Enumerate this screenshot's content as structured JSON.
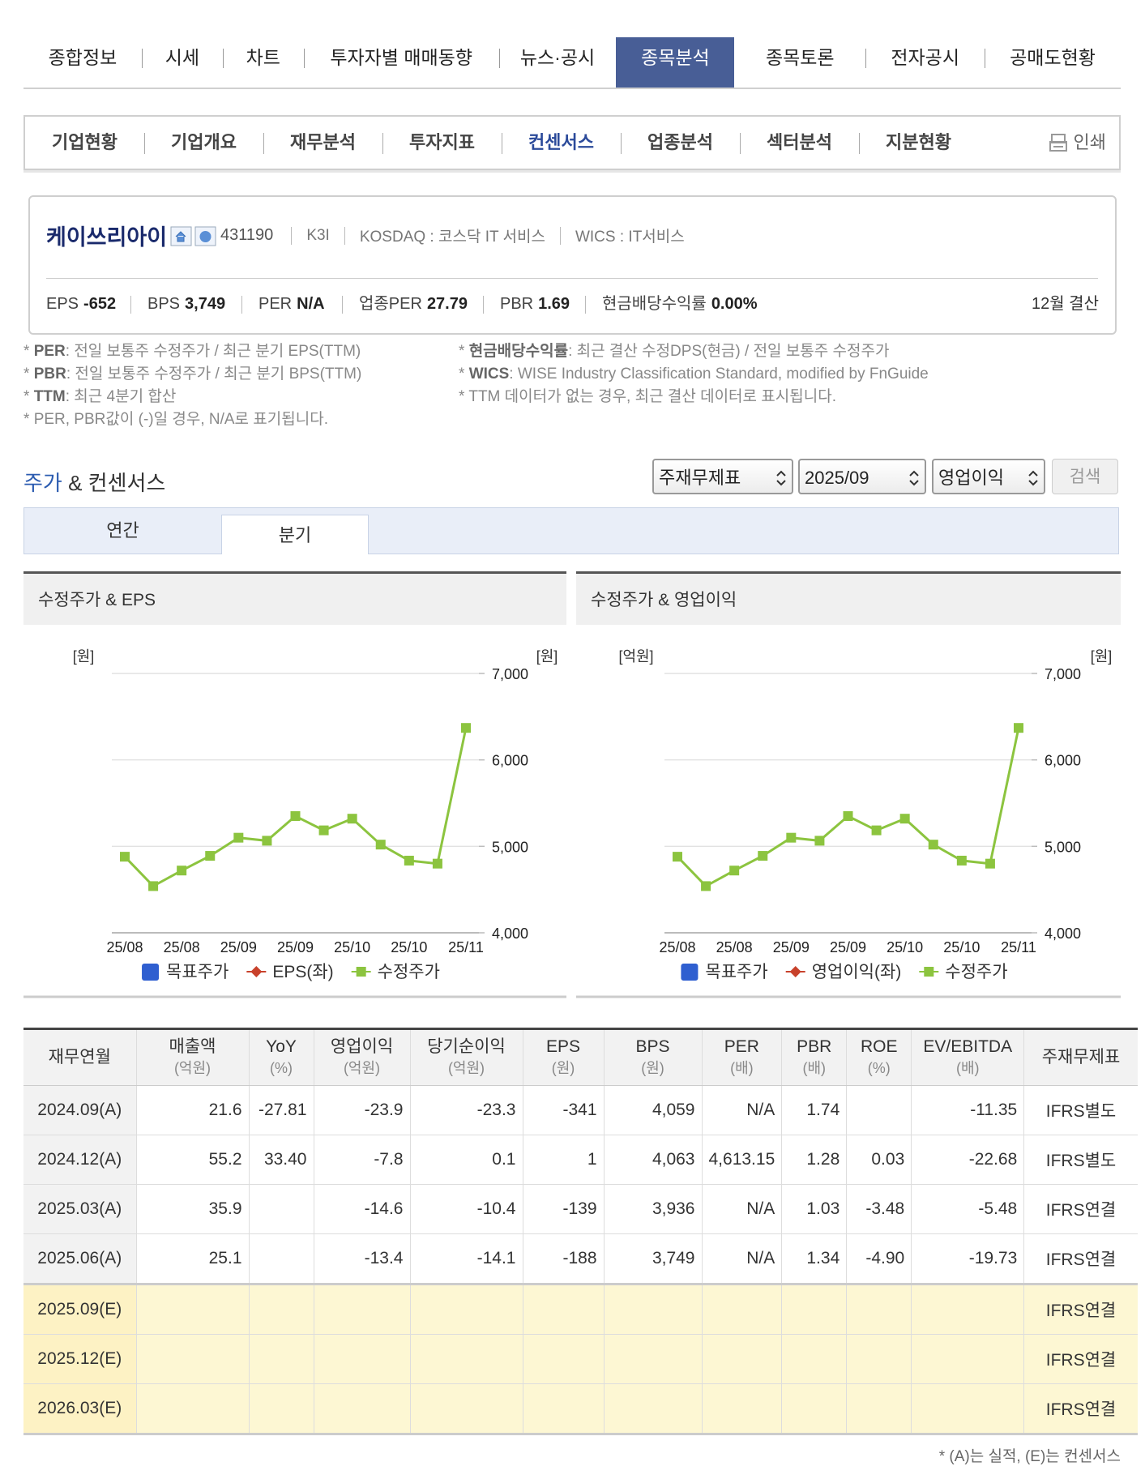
{
  "main_tabs": [
    "종합정보",
    "시세",
    "차트",
    "투자자별 매매동향",
    "뉴스·공시",
    "종목분석",
    "종목토론",
    "전자공시",
    "공매도현황"
  ],
  "main_active": 5,
  "sub_tabs": [
    "기업현황",
    "기업개요",
    "재무분석",
    "투자지표",
    "컨센서스",
    "업종분석",
    "섹터분석",
    "지분현황"
  ],
  "sub_active": 4,
  "print_label": "인쇄",
  "company": {
    "name": "케이쓰리아이",
    "code": "431190",
    "ticker": "K3I",
    "market": "KOSDAQ : 코스닥 IT 서비스",
    "wics": "WICS : IT서비스"
  },
  "metrics": [
    {
      "label": "EPS",
      "value": "-652"
    },
    {
      "label": "BPS",
      "value": "3,749"
    },
    {
      "label": "PER",
      "value": "N/A"
    },
    {
      "label": "업종PER",
      "value": "27.79"
    },
    {
      "label": "PBR",
      "value": "1.69"
    },
    {
      "label": "현금배당수익률",
      "value": "0.00%"
    }
  ],
  "fiscal": "12월 결산",
  "notes": {
    "bullet": "*",
    "left": [
      {
        "term": "PER",
        "text": ": 전일 보통주 수정주가 / 최근 분기 EPS(TTM)"
      },
      {
        "term": "PBR",
        "text": ": 전일 보통주 수정주가 / 최근 분기 BPS(TTM)"
      },
      {
        "term": "TTM",
        "text": ": 최근 4분기 합산"
      },
      {
        "text": "PER, PBR값이 (-)일 경우, N/A로 표기됩니다."
      }
    ],
    "right": [
      {
        "term": "현금배당수익률",
        "text": ": 최근 결산 수정DPS(현금) / 전일 보통주 수정주가"
      },
      {
        "term": "WICS",
        "text": ": WISE Industry Classification Standard, modified by FnGuide"
      },
      {
        "text": "TTM 데이터가 없는 경우, 최근 결산 데이터로 표시됩니다."
      }
    ]
  },
  "section": {
    "title_accent": "주가",
    "title_rest": "& 컨센서스"
  },
  "selects": [
    "주재무제표",
    "2025/09",
    "영업이익"
  ],
  "search_button": "검색",
  "period_tabs": [
    "연간",
    "분기"
  ],
  "period_active": 1,
  "chart_data": [
    {
      "type": "line",
      "title": "수정주가 & EPS",
      "y_label": "[원]",
      "y2_label": "[원]",
      "categories": [
        "25/08",
        null,
        "25/08",
        null,
        "25/09",
        null,
        "25/09",
        null,
        "25/10",
        null,
        "25/10",
        null,
        "25/11"
      ],
      "series": [
        {
          "name": "목표주가",
          "color": "#2f5fd0",
          "marker": "square",
          "values": [
            null,
            null,
            null,
            null,
            null,
            null,
            null,
            null,
            null,
            null,
            null,
            null,
            null
          ]
        },
        {
          "name": "EPS(좌)",
          "color": "#c8412b",
          "marker": "diamond",
          "values": [
            null,
            null,
            null,
            null,
            null,
            null,
            null,
            null,
            null,
            null,
            null,
            null,
            null
          ]
        },
        {
          "name": "수정주가",
          "color": "#8cc43f",
          "marker": "square",
          "axis": "y2",
          "values": [
            4880,
            4540,
            4720,
            4890,
            5100,
            5065,
            5350,
            5185,
            5320,
            5020,
            4835,
            4800,
            6370
          ]
        }
      ],
      "y2lim": [
        4000,
        7000
      ],
      "y2ticks": [
        {
          "value": 4000,
          "label": "4,000"
        },
        {
          "value": 5000,
          "label": "5,000"
        },
        {
          "value": 6000,
          "label": "6,000"
        },
        {
          "value": 7000,
          "label": "7,000"
        }
      ],
      "grid": true
    },
    {
      "type": "line",
      "title": "수정주가 & 영업이익",
      "y_label": "[억원]",
      "y2_label": "[원]",
      "categories": [
        "25/08",
        null,
        "25/08",
        null,
        "25/09",
        null,
        "25/09",
        null,
        "25/10",
        null,
        "25/10",
        null,
        "25/11"
      ],
      "series": [
        {
          "name": "목표주가",
          "color": "#2f5fd0",
          "marker": "square",
          "values": [
            null,
            null,
            null,
            null,
            null,
            null,
            null,
            null,
            null,
            null,
            null,
            null,
            null
          ]
        },
        {
          "name": "영업이익(좌)",
          "color": "#c8412b",
          "marker": "diamond",
          "values": [
            null,
            null,
            null,
            null,
            null,
            null,
            null,
            null,
            null,
            null,
            null,
            null,
            null
          ]
        },
        {
          "name": "수정주가",
          "color": "#8cc43f",
          "marker": "square",
          "axis": "y2",
          "values": [
            4880,
            4540,
            4720,
            4890,
            5100,
            5065,
            5350,
            5185,
            5320,
            5020,
            4835,
            4800,
            6370
          ]
        }
      ],
      "y2lim": [
        4000,
        7000
      ],
      "y2ticks": [
        {
          "value": 4000,
          "label": "4,000"
        },
        {
          "value": 5000,
          "label": "5,000"
        },
        {
          "value": 6000,
          "label": "6,000"
        },
        {
          "value": 7000,
          "label": "7,000"
        }
      ],
      "grid": true
    }
  ],
  "table": {
    "header": [
      {
        "label": "재무연월"
      },
      {
        "label": "매출액",
        "unit": "(억원)"
      },
      {
        "label": "YoY",
        "unit": "(%)"
      },
      {
        "label": "영업이익",
        "unit": "(억원)"
      },
      {
        "label": "당기순이익",
        "unit": "(억원)"
      },
      {
        "label": "EPS",
        "unit": "(원)"
      },
      {
        "label": "BPS",
        "unit": "(원)"
      },
      {
        "label": "PER",
        "unit": "(배)"
      },
      {
        "label": "PBR",
        "unit": "(배)"
      },
      {
        "label": "ROE",
        "unit": "(%)"
      },
      {
        "label": "EV/EBITDA",
        "unit": "(배)"
      },
      {
        "label": "주재무제표"
      }
    ],
    "rows": [
      [
        "2024.09(A)",
        "21.6",
        "-27.81",
        "-23.9",
        "-23.3",
        "-341",
        "4,059",
        "N/A",
        "1.74",
        null,
        "-11.35",
        "IFRS별도"
      ],
      [
        "2024.12(A)",
        "55.2",
        "33.40",
        "-7.8",
        "0.1",
        "1",
        "4,063",
        "4,613.15",
        "1.28",
        "0.03",
        "-22.68",
        "IFRS별도"
      ],
      [
        "2025.03(A)",
        "35.9",
        null,
        "-14.6",
        "-10.4",
        "-139",
        "3,936",
        "N/A",
        "1.03",
        "-3.48",
        "-5.48",
        "IFRS연결"
      ],
      [
        "2025.06(A)",
        "25.1",
        null,
        "-13.4",
        "-14.1",
        "-188",
        "3,749",
        "N/A",
        "1.34",
        "-4.90",
        "-19.73",
        "IFRS연결"
      ],
      [
        "2025.09(E)",
        null,
        null,
        null,
        null,
        null,
        null,
        null,
        null,
        null,
        null,
        "IFRS연결"
      ],
      [
        "2025.12(E)",
        null,
        null,
        null,
        null,
        null,
        null,
        null,
        null,
        null,
        null,
        "IFRS연결"
      ],
      [
        "2026.03(E)",
        null,
        null,
        null,
        null,
        null,
        null,
        null,
        null,
        null,
        null,
        "IFRS연결"
      ]
    ],
    "estimate_from": 4
  },
  "footnote": "* (A)는 실적, (E)는 컨센서스"
}
